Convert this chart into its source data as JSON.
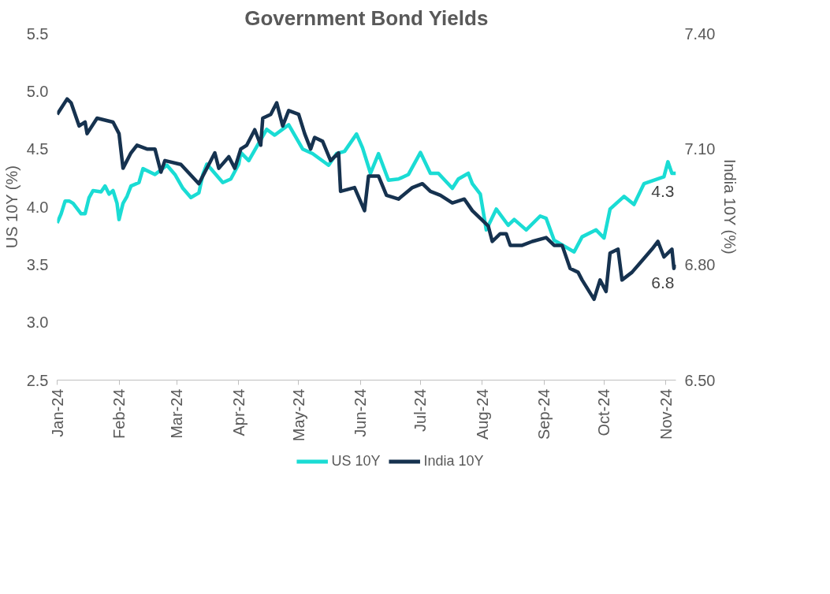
{
  "chart_data": {
    "type": "line",
    "title": "Government Bond Yields",
    "ylabel": "US 10Y (%)",
    "y2label": "India 10Y (%)",
    "xlim": [
      "2024-01-01",
      "2024-11-06"
    ],
    "xticks": [
      {
        "value": "2024-01-01",
        "label": "Jan-24"
      },
      {
        "value": "2024-02-01",
        "label": "Feb-24"
      },
      {
        "value": "2024-03-01",
        "label": "Mar-24"
      },
      {
        "value": "2024-04-01",
        "label": "Apr-24"
      },
      {
        "value": "2024-05-01",
        "label": "May-24"
      },
      {
        "value": "2024-06-01",
        "label": "Jun-24"
      },
      {
        "value": "2024-07-01",
        "label": "Jul-24"
      },
      {
        "value": "2024-08-01",
        "label": "Aug-24"
      },
      {
        "value": "2024-09-01",
        "label": "Sep-24"
      },
      {
        "value": "2024-10-01",
        "label": "Oct-24"
      },
      {
        "value": "2024-11-01",
        "label": "Nov-24"
      }
    ],
    "ylim": [
      2.5,
      5.5
    ],
    "yticks": [
      {
        "value": 2.5,
        "label": "2.5"
      },
      {
        "value": 3,
        "label": "3.0"
      },
      {
        "value": 3.5,
        "label": "3.5"
      },
      {
        "value": 4,
        "label": "4.0"
      },
      {
        "value": 4.5,
        "label": "4.5"
      },
      {
        "value": 5,
        "label": "5.0"
      },
      {
        "value": 5.5,
        "label": "5.5"
      }
    ],
    "y2lim": [
      6.5,
      7.4
    ],
    "y2ticks": [
      {
        "value": 6.5,
        "label": "6.50"
      },
      {
        "value": 6.8,
        "label": "6.80"
      },
      {
        "value": 7.1,
        "label": "7.10"
      },
      {
        "value": 7.4,
        "label": "7.40"
      }
    ],
    "grid": false,
    "legend": "bottom",
    "marker": "none",
    "line_style": "solid",
    "series": [
      {
        "name": "US 10Y",
        "color": "#1adcd4",
        "x": [
          "2024-01-01",
          "2024-01-03",
          "2024-01-05",
          "2024-01-07",
          "2024-01-09",
          "2024-01-13",
          "2024-01-15",
          "2024-01-17",
          "2024-01-19",
          "2024-01-23",
          "2024-01-25",
          "2024-01-27",
          "2024-01-29",
          "2024-01-31",
          "2024-02-01",
          "2024-02-03",
          "2024-02-05",
          "2024-02-07",
          "2024-02-11",
          "2024-02-13",
          "2024-02-19",
          "2024-02-25",
          "2024-02-29",
          "2024-03-04",
          "2024-03-08",
          "2024-03-12",
          "2024-03-14",
          "2024-03-16",
          "2024-03-20",
          "2024-03-24",
          "2024-03-28",
          "2024-04-01",
          "2024-04-02",
          "2024-04-06",
          "2024-04-10",
          "2024-04-15",
          "2024-04-19",
          "2024-04-26",
          "2024-05-03",
          "2024-05-08",
          "2024-05-16",
          "2024-05-20",
          "2024-05-24",
          "2024-05-30",
          "2024-06-02",
          "2024-06-06",
          "2024-06-10",
          "2024-06-15",
          "2024-06-20",
          "2024-06-25",
          "2024-07-01",
          "2024-07-06",
          "2024-07-10",
          "2024-07-17",
          "2024-07-20",
          "2024-07-25",
          "2024-07-27",
          "2024-07-31",
          "2024-08-03",
          "2024-08-08",
          "2024-08-14",
          "2024-08-17",
          "2024-08-23",
          "2024-08-30",
          "2024-09-02",
          "2024-09-06",
          "2024-09-16",
          "2024-09-20",
          "2024-09-27",
          "2024-10-01",
          "2024-10-04",
          "2024-10-11",
          "2024-10-16",
          "2024-10-21",
          "2024-10-31",
          "2024-11-02",
          "2024-11-04",
          "2024-11-06"
        ],
        "values": [
          3.86,
          3.94,
          4.05,
          4.05,
          4.03,
          3.94,
          3.94,
          4.08,
          4.14,
          4.13,
          4.18,
          4.11,
          4.14,
          4.03,
          3.89,
          4.03,
          4.09,
          4.18,
          4.21,
          4.33,
          4.28,
          4.36,
          4.28,
          4.16,
          4.08,
          4.12,
          4.28,
          4.37,
          4.29,
          4.21,
          4.24,
          4.37,
          4.47,
          4.4,
          4.52,
          4.67,
          4.62,
          4.71,
          4.5,
          4.46,
          4.36,
          4.46,
          4.48,
          4.63,
          4.51,
          4.29,
          4.46,
          4.23,
          4.24,
          4.28,
          4.47,
          4.29,
          4.29,
          4.16,
          4.24,
          4.29,
          4.2,
          4.11,
          3.8,
          3.98,
          3.84,
          3.89,
          3.8,
          3.92,
          3.9,
          3.71,
          3.61,
          3.74,
          3.8,
          3.73,
          3.98,
          4.09,
          4.02,
          4.2,
          4.26,
          4.39,
          4.29,
          4.29
        ],
        "value_labels": [
          null,
          null,
          null,
          null,
          null,
          null,
          null,
          null,
          null,
          null,
          null,
          null,
          null,
          null,
          null,
          null,
          null,
          null,
          null,
          null,
          null,
          null,
          null,
          null,
          null,
          null,
          null,
          null,
          null,
          null,
          null,
          null,
          null,
          null,
          null,
          null,
          null,
          null,
          null,
          null,
          null,
          null,
          null,
          null,
          null,
          null,
          null,
          null,
          null,
          null,
          null,
          null,
          null,
          null,
          null,
          null,
          null,
          null,
          null,
          null,
          null,
          null,
          null,
          null,
          null,
          null,
          null,
          null,
          null,
          null,
          null,
          null,
          null,
          null,
          null,
          null,
          null,
          "4.3"
        ]
      },
      {
        "name": "India 10Y",
        "color": "#16324f",
        "axis": "y2",
        "x": [
          "2024-01-01",
          "2024-01-06",
          "2024-01-08",
          "2024-01-12",
          "2024-01-15",
          "2024-01-16",
          "2024-01-21",
          "2024-01-29",
          "2024-02-01",
          "2024-02-03",
          "2024-02-07",
          "2024-02-10",
          "2024-02-15",
          "2024-02-19",
          "2024-02-22",
          "2024-02-24",
          "2024-03-03",
          "2024-03-12",
          "2024-03-17",
          "2024-03-20",
          "2024-03-22",
          "2024-03-27",
          "2024-03-30",
          "2024-04-02",
          "2024-04-05",
          "2024-04-09",
          "2024-04-12",
          "2024-04-13",
          "2024-04-17",
          "2024-04-20",
          "2024-04-23",
          "2024-04-26",
          "2024-05-01",
          "2024-05-04",
          "2024-05-07",
          "2024-05-09",
          "2024-05-13",
          "2024-05-17",
          "2024-05-21",
          "2024-05-22",
          "2024-05-29",
          "2024-06-03",
          "2024-06-05",
          "2024-06-10",
          "2024-06-14",
          "2024-06-20",
          "2024-06-27",
          "2024-07-02",
          "2024-07-06",
          "2024-07-11",
          "2024-07-17",
          "2024-07-23",
          "2024-07-27",
          "2024-07-31",
          "2024-08-04",
          "2024-08-06",
          "2024-08-10",
          "2024-08-13",
          "2024-08-15",
          "2024-08-21",
          "2024-08-26",
          "2024-09-02",
          "2024-09-06",
          "2024-09-10",
          "2024-09-14",
          "2024-09-18",
          "2024-09-20",
          "2024-09-26",
          "2024-09-29",
          "2024-10-02",
          "2024-10-04",
          "2024-10-08",
          "2024-10-10",
          "2024-10-15",
          "2024-10-20",
          "2024-10-25",
          "2024-10-28",
          "2024-10-31",
          "2024-11-04",
          "2024-11-05",
          "2024-11-06"
        ],
        "values": [
          7.19,
          7.23,
          7.22,
          7.16,
          7.17,
          7.14,
          7.18,
          7.17,
          7.14,
          7.05,
          7.09,
          7.11,
          7.1,
          7.1,
          7.04,
          7.07,
          7.06,
          7.01,
          7.06,
          7.09,
          7.05,
          7.08,
          7.05,
          7.1,
          7.11,
          7.15,
          7.11,
          7.18,
          7.19,
          7.22,
          7.16,
          7.2,
          7.19,
          7.14,
          7.1,
          7.13,
          7.12,
          7.07,
          7.09,
          6.99,
          7.0,
          6.94,
          7.03,
          7.03,
          6.98,
          6.97,
          7.0,
          7.01,
          6.99,
          6.98,
          6.96,
          6.97,
          6.94,
          6.92,
          6.9,
          6.86,
          6.88,
          6.88,
          6.85,
          6.85,
          6.86,
          6.87,
          6.85,
          6.85,
          6.79,
          6.78,
          6.76,
          6.71,
          6.76,
          6.73,
          6.83,
          6.84,
          6.76,
          6.78,
          6.81,
          6.84,
          6.86,
          6.82,
          6.84,
          6.79,
          6.8
        ],
        "value_labels": [
          null,
          null,
          null,
          null,
          null,
          null,
          null,
          null,
          null,
          null,
          null,
          null,
          null,
          null,
          null,
          null,
          null,
          null,
          null,
          null,
          null,
          null,
          null,
          null,
          null,
          null,
          null,
          null,
          null,
          null,
          null,
          null,
          null,
          null,
          null,
          null,
          null,
          null,
          null,
          null,
          null,
          null,
          null,
          null,
          null,
          null,
          null,
          null,
          null,
          null,
          null,
          null,
          null,
          null,
          null,
          null,
          null,
          null,
          null,
          null,
          null,
          null,
          null,
          null,
          null,
          null,
          null,
          null,
          null,
          null,
          null,
          null,
          null,
          null,
          null,
          null,
          null,
          null,
          null,
          null,
          "6.8"
        ]
      }
    ]
  }
}
